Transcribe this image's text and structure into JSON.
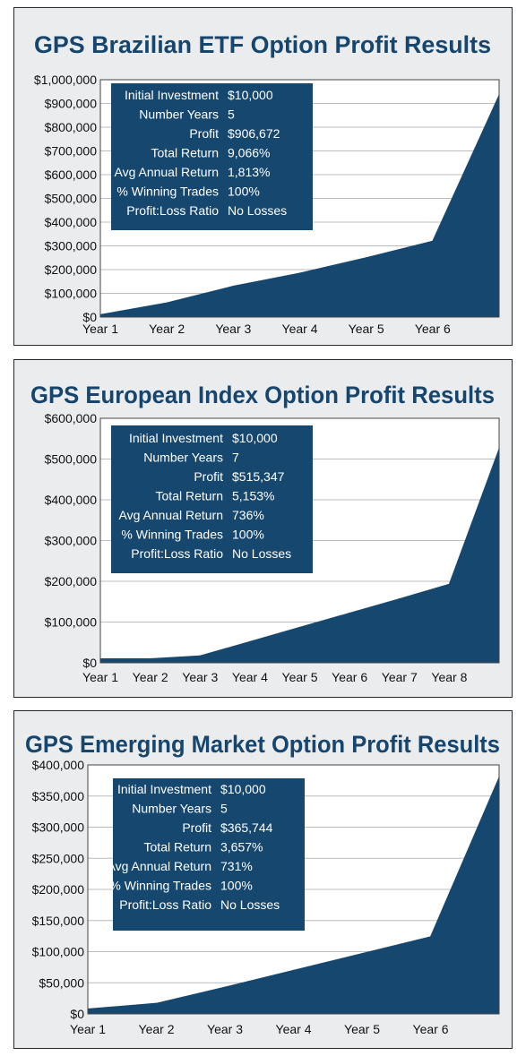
{
  "colors": {
    "area": "#16476f",
    "title": "#16466e",
    "plot_bg": "#ffffff",
    "panel_bg": "#eaecee",
    "grid": "#b9bcc0",
    "info_box": "#16476f"
  },
  "chart_data": [
    {
      "type": "area",
      "title": "GPS Brazilian ETF Option Profit Results",
      "categories": [
        "Year 1",
        "Year 2",
        "Year 3",
        "Year 4",
        "Year 5",
        "Year 6"
      ],
      "x": [
        0,
        1,
        2,
        3,
        4,
        5,
        6
      ],
      "values": [
        10000,
        60000,
        130000,
        185000,
        250000,
        320000,
        935000
      ],
      "ylim": [
        0,
        1000000
      ],
      "yticks": [
        0,
        100000,
        200000,
        300000,
        400000,
        500000,
        600000,
        700000,
        800000,
        900000,
        1000000
      ],
      "ytick_labels": [
        "$0",
        "$100,000",
        "$200,000",
        "$300,000",
        "$400,000",
        "$500,000",
        "$600,000",
        "$700,000",
        "$800,000",
        "$900,000",
        "$1,000,000"
      ],
      "grid": true,
      "info": [
        {
          "label": "Initial Investment",
          "value": "$10,000"
        },
        {
          "label": "Number Years",
          "value": "5"
        },
        {
          "label": "Profit",
          "value": "$906,672"
        },
        {
          "label": "Total Return",
          "value": "9,066%"
        },
        {
          "label": "Avg Annual Return",
          "value": "1,813%"
        },
        {
          "label": "% Winning Trades",
          "value": "100%"
        },
        {
          "label": "Profit:Loss Ratio",
          "value": "No Losses"
        }
      ]
    },
    {
      "type": "area",
      "title": "GPS European Index Option Profit Results",
      "categories": [
        "Year 1",
        "Year 2",
        "Year 3",
        "Year 4",
        "Year 5",
        "Year 6",
        "Year 7",
        "Year 8"
      ],
      "x": [
        0,
        1,
        2,
        3,
        4,
        5,
        6,
        7,
        8
      ],
      "values": [
        10000,
        10000,
        17000,
        52000,
        87000,
        122000,
        157000,
        193000,
        525000
      ],
      "ylim": [
        0,
        600000
      ],
      "yticks": [
        0,
        100000,
        200000,
        300000,
        400000,
        500000,
        600000
      ],
      "ytick_labels": [
        "$0",
        "$100,000",
        "$200,000",
        "$300,000",
        "$400,000",
        "$500,000",
        "$600,000"
      ],
      "grid": true,
      "info": [
        {
          "label": "Initial Investment",
          "value": "$10,000"
        },
        {
          "label": "Number Years",
          "value": "7"
        },
        {
          "label": "Profit",
          "value": "$515,347"
        },
        {
          "label": "Total Return",
          "value": "5,153%"
        },
        {
          "label": "Avg Annual Return",
          "value": "736%"
        },
        {
          "label": "% Winning Trades",
          "value": "100%"
        },
        {
          "label": "Profit:Loss Ratio",
          "value": "No Losses"
        }
      ]
    },
    {
      "type": "area",
      "title": "GPS Emerging Market Option Profit Results",
      "categories": [
        "Year 1",
        "Year 2",
        "Year 3",
        "Year 4",
        "Year 5",
        "Year 6"
      ],
      "x": [
        0,
        1,
        2,
        3,
        4,
        5,
        6
      ],
      "values": [
        8000,
        17000,
        43000,
        70000,
        97000,
        124000,
        380000
      ],
      "ylim": [
        0,
        400000
      ],
      "yticks": [
        0,
        50000,
        100000,
        150000,
        200000,
        250000,
        300000,
        350000,
        400000
      ],
      "ytick_labels": [
        "$0",
        "$50,000",
        "$100,000",
        "$150,000",
        "$200,000",
        "$250,000",
        "$300,000",
        "$350,000",
        "$400,000"
      ],
      "grid": true,
      "info": [
        {
          "label": "Initial Investment",
          "value": "$10,000"
        },
        {
          "label": "Number Years",
          "value": "5"
        },
        {
          "label": "Profit",
          "value": "$365,744"
        },
        {
          "label": "Total Return",
          "value": "3,657%"
        },
        {
          "label": "Avg Annual Return",
          "value": "731%"
        },
        {
          "label": "% Winning Trades",
          "value": "100%"
        },
        {
          "label": "Profit:Loss Ratio",
          "value": "No Losses"
        }
      ]
    }
  ]
}
